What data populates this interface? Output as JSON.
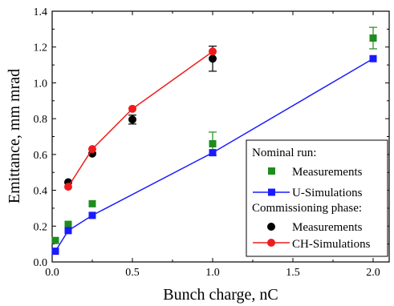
{
  "chart_data": {
    "type": "scatter",
    "xlabel": "Bunch charge, nC",
    "ylabel": "Emittance, mm mrad",
    "xlim": [
      0,
      2.1
    ],
    "ylim": [
      0,
      1.4
    ],
    "x_ticks": [
      0.0,
      0.5,
      1.0,
      1.5,
      2.0
    ],
    "x_tick_labels": [
      "0.0",
      "0.5",
      "1.0",
      "1.5",
      "2.0"
    ],
    "y_ticks": [
      0.0,
      0.2,
      0.4,
      0.6,
      0.8,
      1.0,
      1.2,
      1.4
    ],
    "y_tick_labels": [
      "0.0",
      "0.2",
      "0.4",
      "0.6",
      "0.8",
      "1.0",
      "1.2",
      "1.4"
    ],
    "grid": false,
    "legend_position": "bottom-right",
    "legend_groups": [
      {
        "title": "Nominal run:",
        "entries": [
          "Measurements",
          "U-Simulations"
        ]
      },
      {
        "title": "Commissioning phase:",
        "entries": [
          "Measurements",
          "CH-Simulations"
        ]
      }
    ],
    "series": [
      {
        "name": "Measurements",
        "group": "Nominal run:",
        "style": "markers",
        "marker": "square",
        "color": "#1e8c1e",
        "x": [
          0.02,
          0.1,
          0.25,
          1.0,
          2.0
        ],
        "y": [
          0.12,
          0.21,
          0.325,
          0.66,
          1.25
        ],
        "err": [
          0.0,
          0.0,
          0.0,
          0.065,
          0.06
        ]
      },
      {
        "name": "U-Simulations",
        "group": "Nominal run:",
        "style": "line-markers",
        "marker": "square",
        "color": "#1a1aff",
        "x": [
          0.02,
          0.1,
          0.25,
          1.0,
          2.0
        ],
        "y": [
          0.06,
          0.175,
          0.26,
          0.61,
          1.135
        ],
        "err": [
          0.0,
          0.0,
          0.0,
          0.0,
          0.0
        ]
      },
      {
        "name": "Measurements",
        "group": "Commissioning phase:",
        "style": "markers",
        "marker": "circle",
        "color": "#000000",
        "x": [
          0.1,
          0.25,
          0.5,
          1.0
        ],
        "y": [
          0.445,
          0.605,
          0.795,
          1.135
        ],
        "err": [
          0.0,
          0.0,
          0.025,
          0.07
        ]
      },
      {
        "name": "CH-Simulations",
        "group": "Commissioning phase:",
        "style": "line-markers",
        "marker": "circle",
        "color": "#ee1c1c",
        "x": [
          0.1,
          0.25,
          0.5,
          1.0
        ],
        "y": [
          0.42,
          0.63,
          0.855,
          1.175
        ],
        "err": [
          0.0,
          0.0,
          0.0,
          0.0
        ]
      }
    ]
  }
}
